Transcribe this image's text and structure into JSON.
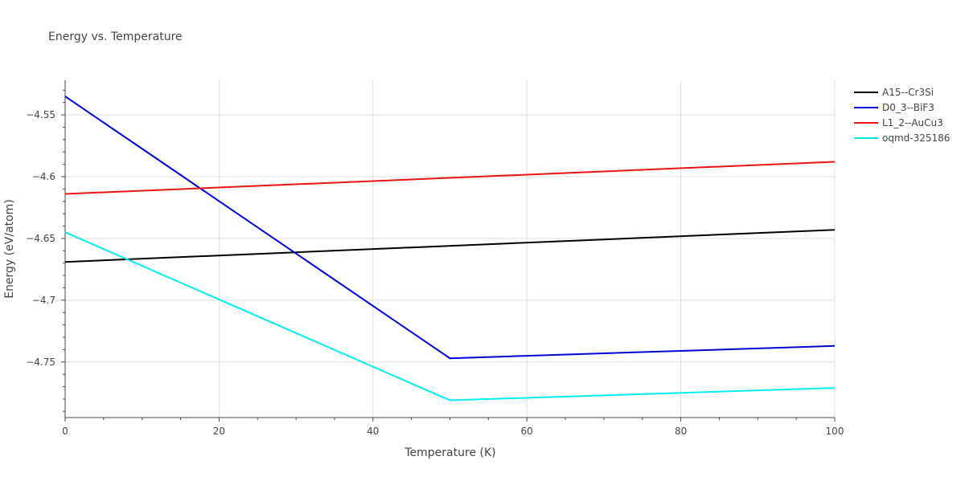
{
  "chart_data": {
    "type": "line",
    "title": "Energy vs. Temperature",
    "xlabel": "Temperature (K)",
    "ylabel": "Energy (eV/atom)",
    "xlim": [
      0,
      100
    ],
    "ylim": [
      -4.795,
      -4.522
    ],
    "x_ticks": [
      0,
      20,
      40,
      60,
      80,
      100
    ],
    "x_tick_labels": [
      "0",
      "20",
      "40",
      "60",
      "80",
      "100"
    ],
    "y_ticks": [
      -4.55,
      -4.6,
      -4.65,
      -4.7,
      -4.75
    ],
    "y_tick_labels": [
      "−4.55",
      "−4.6",
      "−4.65",
      "−4.7",
      "−4.75"
    ],
    "grid": true,
    "legend_position": "top-right",
    "series": [
      {
        "name": "A15--Cr3Si",
        "color": "#000000",
        "x": [
          0,
          100
        ],
        "y": [
          -4.669,
          -4.643
        ]
      },
      {
        "name": "D0_3--BiF3",
        "color": "#0000dd",
        "x": [
          0,
          50,
          100
        ],
        "y": [
          -4.535,
          -4.747,
          -4.737
        ]
      },
      {
        "name": "L1_2--AuCu3",
        "color": "#ee1111",
        "x": [
          0,
          100
        ],
        "y": [
          -4.614,
          -4.588
        ]
      },
      {
        "name": "oqmd-325186",
        "color": "#00eeee",
        "x": [
          0,
          50,
          100
        ],
        "y": [
          -4.645,
          -4.781,
          -4.771
        ]
      }
    ]
  }
}
